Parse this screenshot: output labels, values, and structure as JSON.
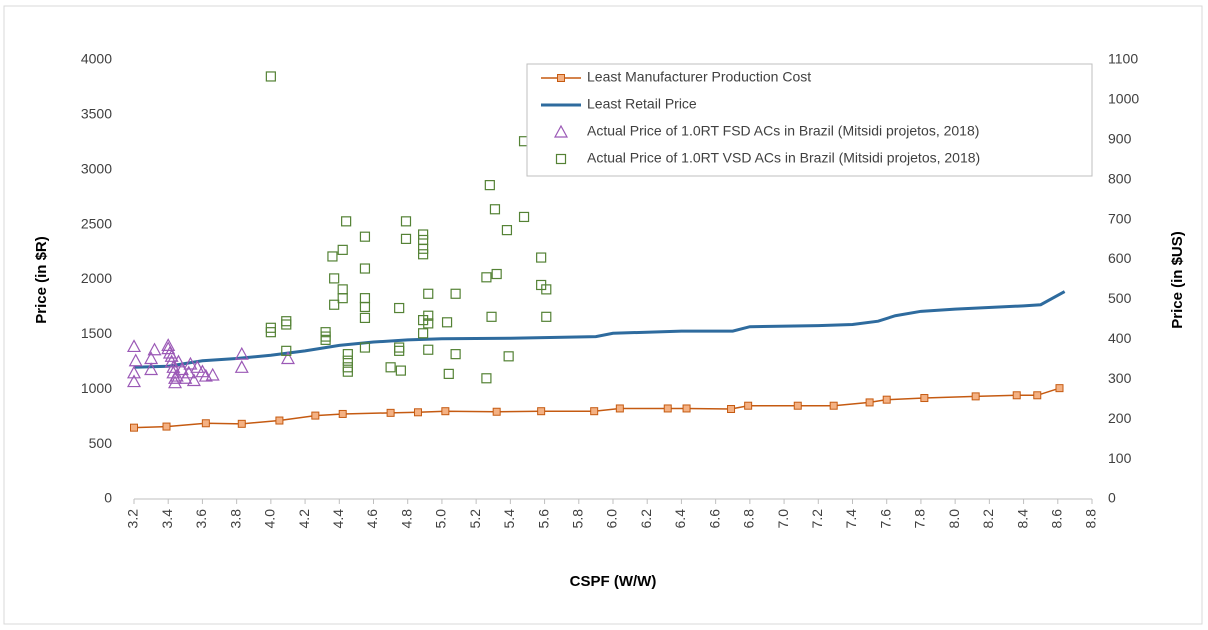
{
  "chart_data": {
    "type": "line",
    "xlabel": "CSPF (W/W)",
    "ylabel": "Price (in $R)",
    "y2label": "Price (in $US)",
    "xlim": [
      3.2,
      8.8
    ],
    "xticks": [
      3.2,
      3.4,
      3.6,
      3.8,
      {
        "value": 4,
        "label": "4.0"
      },
      4.2,
      4.4,
      4.6,
      4.8,
      {
        "value": 5,
        "label": "5.0"
      },
      5.2,
      5.4,
      5.6,
      5.8,
      {
        "value": 6,
        "label": "6.0"
      },
      6.2,
      6.4,
      6.6,
      6.8,
      {
        "value": 7,
        "label": "7.0"
      },
      7.2,
      7.4,
      7.6,
      7.8,
      {
        "value": 8,
        "label": "8.0"
      },
      8.2,
      8.4,
      8.6,
      8.8
    ],
    "ylim": [
      0,
      4000
    ],
    "yticks": [
      0,
      500,
      1000,
      1500,
      2000,
      2500,
      3000,
      3500,
      4000
    ],
    "y2lim": [
      0,
      1100
    ],
    "y2ticks": [
      0,
      100,
      200,
      300,
      400,
      500,
      600,
      700,
      800,
      900,
      1000,
      1100
    ],
    "legend": "upper right",
    "series": [
      {
        "name": "Least Manufacturer Production Cost",
        "color": "#c55a11",
        "line": true,
        "marker": "square",
        "x": [
          3.2,
          3.39,
          3.62,
          3.83,
          4.05,
          4.26,
          4.42,
          4.7,
          4.86,
          5.02,
          5.32,
          5.58,
          5.89,
          6.04,
          6.32,
          6.43,
          6.69,
          6.79,
          7.08,
          7.29,
          7.5,
          7.6,
          7.82,
          8.12,
          8.36,
          8.48,
          8.61
        ],
        "values": [
          650,
          660,
          690,
          685,
          715,
          760,
          775,
          785,
          790,
          800,
          795,
          800,
          800,
          825,
          825,
          825,
          820,
          850,
          850,
          850,
          880,
          905,
          920,
          935,
          945,
          945,
          1010
        ]
      },
      {
        "name": "Least Retail Price",
        "color": "#2e6b9e",
        "line": true,
        "marker": "none",
        "x": [
          3.2,
          3.4,
          3.6,
          3.8,
          4.0,
          4.2,
          4.4,
          4.6,
          4.8,
          5.0,
          5.4,
          5.9,
          6.0,
          6.4,
          6.7,
          6.8,
          7.2,
          7.4,
          7.55,
          7.65,
          7.8,
          8.0,
          8.4,
          8.5,
          8.64
        ],
        "values": [
          1200,
          1210,
          1260,
          1280,
          1310,
          1350,
          1400,
          1430,
          1450,
          1460,
          1465,
          1480,
          1510,
          1530,
          1530,
          1570,
          1580,
          1590,
          1620,
          1670,
          1710,
          1730,
          1760,
          1770,
          1890
        ]
      },
      {
        "name": "Actual Price of 1.0RT FSD ACs in Brazil (Mitsidi projetos, 2018)",
        "color": "#9b59b6",
        "line": false,
        "marker": "triangle",
        "x": [
          3.2,
          3.21,
          3.2,
          3.2,
          3.3,
          3.3,
          3.32,
          3.4,
          3.4,
          3.41,
          3.42,
          3.42,
          3.43,
          3.43,
          3.44,
          3.44,
          3.45,
          3.46,
          3.48,
          3.5,
          3.52,
          3.53,
          3.55,
          3.57,
          3.6,
          3.62,
          3.66,
          3.83,
          3.83,
          4.1
        ],
        "values": [
          1390,
          1260,
          1150,
          1070,
          1180,
          1280,
          1360,
          1400,
          1370,
          1330,
          1300,
          1250,
          1200,
          1150,
          1100,
          1060,
          1120,
          1250,
          1180,
          1100,
          1150,
          1230,
          1080,
          1200,
          1160,
          1120,
          1130,
          1320,
          1200,
          1280
        ]
      },
      {
        "name": "Actual Price of 1.0RT VSD ACs in Brazil (Mitsidi projetos, 2018)",
        "color": "#548235",
        "line": false,
        "marker": "square-open",
        "x": [
          4.0,
          4.0,
          4.0,
          4.09,
          4.09,
          4.09,
          4.32,
          4.32,
          4.32,
          4.36,
          4.37,
          4.37,
          4.42,
          4.42,
          4.42,
          4.44,
          4.45,
          4.45,
          4.45,
          4.45,
          4.55,
          4.55,
          4.55,
          4.55,
          4.55,
          4.55,
          4.7,
          4.75,
          4.75,
          4.75,
          4.76,
          4.79,
          4.79,
          4.89,
          4.89,
          4.89,
          4.89,
          4.89,
          4.89,
          4.92,
          4.92,
          4.92,
          4.92,
          5.03,
          5.04,
          5.08,
          5.08,
          5.26,
          5.26,
          5.28,
          5.29,
          5.31,
          5.32,
          5.38,
          5.39,
          5.48,
          5.48,
          5.58,
          5.58,
          5.61,
          5.61
        ],
        "values": [
          3850,
          1560,
          1520,
          1620,
          1590,
          1350,
          1520,
          1480,
          1450,
          2210,
          2010,
          1770,
          2270,
          1910,
          1830,
          2530,
          1320,
          1260,
          1200,
          1160,
          2390,
          2100,
          1830,
          1750,
          1650,
          1380,
          1200,
          1740,
          1380,
          1350,
          1170,
          2530,
          2370,
          2410,
          2360,
          2280,
          2230,
          1630,
          1510,
          1870,
          1670,
          1600,
          1360,
          1610,
          1140,
          1870,
          1320,
          2020,
          1100,
          2860,
          1660,
          2640,
          2050,
          2450,
          1300,
          3260,
          2570,
          2200,
          1950,
          1910,
          1660
        ]
      }
    ]
  }
}
